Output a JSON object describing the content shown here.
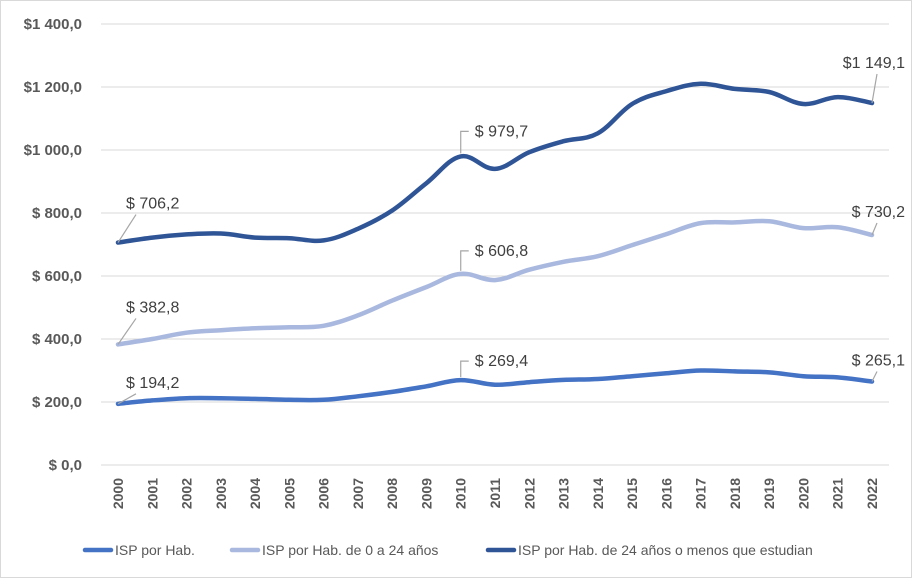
{
  "chart_data": {
    "type": "line",
    "title": "",
    "xlabel": "",
    "ylabel": "",
    "ylim": [
      0,
      1400
    ],
    "y_ticks": [
      0,
      200,
      400,
      600,
      800,
      1000,
      1200,
      1400
    ],
    "y_tick_labels": [
      "$ 0,0",
      "$ 200,0",
      "$ 400,0",
      "$ 600,0",
      "$ 800,0",
      "$1 000,0",
      "$1 200,0",
      "$1 400,0"
    ],
    "grid": true,
    "legend_position": "bottom",
    "x": [
      "2000",
      "2001",
      "2002",
      "2003",
      "2004",
      "2005",
      "2006",
      "2007",
      "2008",
      "2009",
      "2010",
      "2011",
      "2012",
      "2013",
      "2014",
      "2015",
      "2016",
      "2017",
      "2018",
      "2019",
      "2020",
      "2021",
      "2022"
    ],
    "series": [
      {
        "name": "ISP por Hab.",
        "color": "#4472c4",
        "values": [
          194.2,
          205,
          212,
          212,
          210,
          207,
          207,
          218,
          232,
          250,
          269.4,
          255,
          263,
          270,
          273,
          282,
          291,
          300,
          297,
          294,
          282,
          278,
          265.1
        ],
        "data_labels": [
          {
            "index": 0,
            "text": "$ 194,2"
          },
          {
            "index": 10,
            "text": "$ 269,4"
          },
          {
            "index": 22,
            "text": "$ 265,1"
          }
        ]
      },
      {
        "name": "ISP por Hab. de 0 a 24 años",
        "color": "#a9b8de",
        "values": [
          382.8,
          400,
          420,
          428,
          434,
          437,
          442,
          475,
          522,
          565,
          606.8,
          587,
          620,
          645,
          663,
          698,
          733,
          768,
          770,
          774,
          752,
          755,
          730.2
        ],
        "data_labels": [
          {
            "index": 0,
            "text": "$ 382,8"
          },
          {
            "index": 10,
            "text": "$ 606,8"
          },
          {
            "index": 22,
            "text": "$ 730,2"
          }
        ]
      },
      {
        "name": "ISP por Hab. de 24 años o menos que estudian",
        "color": "#2f5597",
        "values": [
          706.2,
          722,
          732,
          735,
          722,
          720,
          713,
          750,
          808,
          895,
          979.7,
          940,
          993,
          1028,
          1053,
          1146,
          1187,
          1210,
          1194,
          1184,
          1146,
          1168,
          1149.1
        ],
        "data_labels": [
          {
            "index": 0,
            "text": "$ 706,2"
          },
          {
            "index": 10,
            "text": "$ 979,7"
          },
          {
            "index": 22,
            "text": "$1 149,1"
          }
        ]
      }
    ]
  }
}
